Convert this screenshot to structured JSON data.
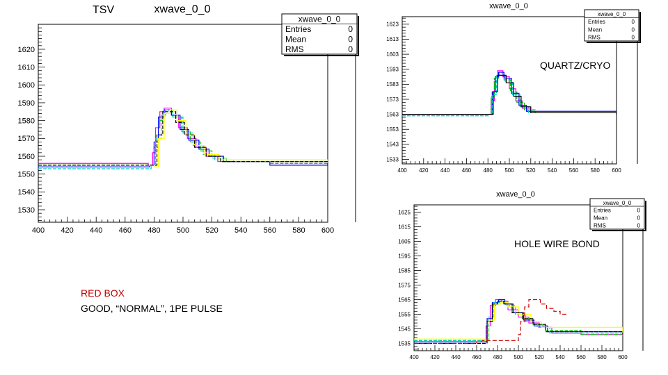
{
  "labels": {
    "tsv": "TSV",
    "quartz": "QUARTZ/CRYO",
    "hole": "HOLE WIRE BOND",
    "red_box_title": "RED BOX",
    "red_box_desc": "GOOD, “NORMAL”, 1PE PULSE"
  },
  "colors": {
    "red_box_title": "#c00000",
    "series": [
      "#ff00ff",
      "#00c000",
      "#0000ff",
      "#00cccc",
      "#ffff00",
      "#000000",
      "#cc0000"
    ]
  },
  "chart_data": [
    {
      "id": "tsv",
      "type": "line",
      "title": "xwave_0_0",
      "xlabel": "",
      "ylabel": "",
      "xlim": [
        400,
        600
      ],
      "ylim": [
        1523,
        1634
      ],
      "xticks": [
        400,
        420,
        440,
        460,
        480,
        500,
        520,
        540,
        560,
        580,
        600
      ],
      "yticks": [
        1530,
        1540,
        1550,
        1560,
        1570,
        1580,
        1590,
        1600,
        1610,
        1620
      ],
      "grid": false,
      "legend": "none",
      "stats": {
        "title": "xwave_0_0",
        "rows": [
          {
            "label": "Entries",
            "value": "0"
          },
          {
            "label": "Mean",
            "value": "0"
          },
          {
            "label": "RMS",
            "value": "0"
          }
        ]
      },
      "pulse": {
        "baseline": 1555,
        "peak": 1587,
        "start": 478,
        "peak_x": 487,
        "tau": 18
      },
      "series": [
        {
          "color": "#ff00ff",
          "values": [
            [
              400,
              1556
            ],
            [
              476,
              1555
            ],
            [
              479,
              1562
            ],
            [
              481,
              1576
            ],
            [
              484,
              1585
            ],
            [
              487,
              1587
            ],
            [
              492,
              1583
            ],
            [
              497,
              1576
            ],
            [
              503,
              1570
            ],
            [
              509,
              1565
            ],
            [
              516,
              1560
            ],
            [
              524,
              1557
            ],
            [
              540,
              1557
            ],
            [
              600,
              1556
            ]
          ]
        },
        {
          "color": "#00c000",
          "values": [
            [
              400,
              1555
            ],
            [
              478,
              1555
            ],
            [
              480,
              1565
            ],
            [
              483,
              1580
            ],
            [
              487,
              1586
            ],
            [
              493,
              1582
            ],
            [
              499,
              1574
            ],
            [
              505,
              1568
            ],
            [
              512,
              1563
            ],
            [
              520,
              1559
            ],
            [
              530,
              1557
            ],
            [
              560,
              1556
            ],
            [
              600,
              1555
            ]
          ]
        },
        {
          "color": "#0000ff",
          "values": [
            [
              400,
              1554
            ],
            [
              477,
              1555
            ],
            [
              480,
              1568
            ],
            [
              483,
              1582
            ],
            [
              487,
              1586
            ],
            [
              492,
              1583
            ],
            [
              498,
              1575
            ],
            [
              504,
              1569
            ],
            [
              511,
              1564
            ],
            [
              518,
              1560
            ],
            [
              528,
              1557
            ],
            [
              560,
              1555
            ],
            [
              600,
              1555
            ]
          ]
        },
        {
          "color": "#00cccc",
          "values": [
            [
              400,
              1553
            ],
            [
              478,
              1555
            ],
            [
              481,
              1570
            ],
            [
              485,
              1583
            ],
            [
              488,
              1586
            ],
            [
              493,
              1582
            ],
            [
              500,
              1573
            ],
            [
              507,
              1566
            ],
            [
              514,
              1561
            ],
            [
              522,
              1558
            ],
            [
              535,
              1557
            ],
            [
              600,
              1555
            ]
          ]
        },
        {
          "color": "#ffff00",
          "values": [
            [
              400,
              1555
            ],
            [
              480,
              1554
            ],
            [
              483,
              1570
            ],
            [
              487,
              1584
            ],
            [
              491,
              1586
            ],
            [
              496,
              1580
            ],
            [
              502,
              1572
            ],
            [
              508,
              1566
            ],
            [
              515,
              1561
            ],
            [
              525,
              1558
            ],
            [
              600,
              1556
            ]
          ]
        },
        {
          "color": "#000000",
          "values": [
            [
              400,
              1555
            ],
            [
              479,
              1555
            ],
            [
              482,
              1572
            ],
            [
              486,
              1585
            ],
            [
              490,
              1585
            ],
            [
              495,
              1579
            ],
            [
              501,
              1572
            ],
            [
              508,
              1565
            ],
            [
              516,
              1560
            ],
            [
              526,
              1557
            ],
            [
              600,
              1555
            ]
          ]
        }
      ]
    },
    {
      "id": "quartz",
      "type": "line",
      "title": "xwave_0_0",
      "xlabel": "",
      "ylabel": "",
      "xlim": [
        400,
        600
      ],
      "ylim": [
        1530,
        1628
      ],
      "xticks": [
        400,
        420,
        440,
        460,
        480,
        500,
        520,
        540,
        560,
        580,
        600
      ],
      "yticks": [
        1533,
        1543,
        1553,
        1563,
        1573,
        1583,
        1593,
        1603,
        1613,
        1623
      ],
      "grid": false,
      "legend": "none",
      "stats": {
        "title": "xwave_0_0",
        "rows": [
          {
            "label": "Entries",
            "value": "0"
          },
          {
            "label": "Mean",
            "value": "0"
          },
          {
            "label": "RMS",
            "value": "0"
          }
        ]
      },
      "series": [
        {
          "color": "#ff00ff",
          "values": [
            [
              400,
              1563
            ],
            [
              480,
              1563
            ],
            [
              483,
              1572
            ],
            [
              486,
              1585
            ],
            [
              489,
              1592
            ],
            [
              494,
              1588
            ],
            [
              500,
              1580
            ],
            [
              506,
              1572
            ],
            [
              512,
              1567
            ],
            [
              520,
              1564
            ],
            [
              600,
              1563
            ]
          ]
        },
        {
          "color": "#00c000",
          "values": [
            [
              400,
              1563
            ],
            [
              480,
              1563
            ],
            [
              483,
              1575
            ],
            [
              486,
              1587
            ],
            [
              490,
              1591
            ],
            [
              495,
              1586
            ],
            [
              501,
              1578
            ],
            [
              507,
              1571
            ],
            [
              514,
              1566
            ],
            [
              524,
              1564
            ],
            [
              600,
              1563
            ]
          ]
        },
        {
          "color": "#0000ff",
          "values": [
            [
              400,
              1563
            ],
            [
              481,
              1563
            ],
            [
              484,
              1578
            ],
            [
              487,
              1588
            ],
            [
              490,
              1591
            ],
            [
              495,
              1587
            ],
            [
              502,
              1577
            ],
            [
              509,
              1569
            ],
            [
              516,
              1565
            ],
            [
              600,
              1563
            ]
          ]
        },
        {
          "color": "#00cccc",
          "values": [
            [
              400,
              1562
            ],
            [
              481,
              1563
            ],
            [
              484,
              1576
            ],
            [
              488,
              1589
            ],
            [
              491,
              1590
            ],
            [
              496,
              1585
            ],
            [
              503,
              1576
            ],
            [
              510,
              1568
            ],
            [
              518,
              1564
            ],
            [
              600,
              1563
            ]
          ]
        },
        {
          "color": "#000000",
          "values": [
            [
              400,
              1563
            ],
            [
              482,
              1563
            ],
            [
              485,
              1578
            ],
            [
              489,
              1589
            ],
            [
              492,
              1589
            ],
            [
              497,
              1584
            ],
            [
              504,
              1575
            ],
            [
              511,
              1568
            ],
            [
              520,
              1564
            ],
            [
              600,
              1563
            ]
          ]
        }
      ]
    },
    {
      "id": "hole",
      "type": "line",
      "title": "xwave_0_0",
      "xlabel": "",
      "ylabel": "",
      "xlim": [
        400,
        600
      ],
      "ylim": [
        1530,
        1630
      ],
      "xticks": [
        400,
        420,
        440,
        460,
        480,
        500,
        520,
        540,
        560,
        580,
        600
      ],
      "yticks": [
        1535,
        1545,
        1555,
        1565,
        1575,
        1585,
        1595,
        1605,
        1615,
        1625
      ],
      "grid": false,
      "legend": "none",
      "stats": {
        "title": "xwave_0_0",
        "rows": [
          {
            "label": "Entries",
            "value": "0"
          },
          {
            "label": "Mean",
            "value": "0"
          },
          {
            "label": "RMS",
            "value": "0"
          }
        ]
      },
      "series": [
        {
          "color": "#ff00ff",
          "values": [
            [
              400,
              1536
            ],
            [
              465,
              1536
            ],
            [
              469,
              1547
            ],
            [
              473,
              1561
            ],
            [
              478,
              1565
            ],
            [
              484,
              1564
            ],
            [
              490,
              1558
            ],
            [
              500,
              1553
            ],
            [
              510,
              1549
            ],
            [
              520,
              1546
            ],
            [
              532,
              1542
            ],
            [
              560,
              1541
            ],
            [
              600,
              1540
            ]
          ]
        },
        {
          "color": "#00c000",
          "values": [
            [
              400,
              1537
            ],
            [
              466,
              1537
            ],
            [
              470,
              1550
            ],
            [
              475,
              1562
            ],
            [
              480,
              1564
            ],
            [
              486,
              1562
            ],
            [
              494,
              1556
            ],
            [
              504,
              1552
            ],
            [
              514,
              1548
            ],
            [
              526,
              1544
            ],
            [
              560,
              1541
            ],
            [
              600,
              1540
            ]
          ]
        },
        {
          "color": "#0000ff",
          "values": [
            [
              400,
              1536
            ],
            [
              466,
              1536
            ],
            [
              470,
              1552
            ],
            [
              475,
              1563
            ],
            [
              481,
              1565
            ],
            [
              487,
              1562
            ],
            [
              495,
              1556
            ],
            [
              505,
              1551
            ],
            [
              515,
              1547
            ],
            [
              528,
              1543
            ],
            [
              600,
              1541
            ]
          ]
        },
        {
          "color": "#00cccc",
          "values": [
            [
              400,
              1537
            ],
            [
              467,
              1537
            ],
            [
              471,
              1553
            ],
            [
              476,
              1563
            ],
            [
              482,
              1564
            ],
            [
              488,
              1561
            ],
            [
              497,
              1555
            ],
            [
              507,
              1550
            ],
            [
              518,
              1546
            ],
            [
              530,
              1542
            ],
            [
              600,
              1541
            ]
          ]
        },
        {
          "color": "#ffff00",
          "values": [
            [
              400,
              1538
            ],
            [
              468,
              1537
            ],
            [
              472,
              1551
            ],
            [
              477,
              1562
            ],
            [
              483,
              1563
            ],
            [
              490,
              1560
            ],
            [
              500,
              1555
            ],
            [
              512,
              1550
            ],
            [
              522,
              1546
            ],
            [
              600,
              1541
            ]
          ]
        },
        {
          "color": "#000000",
          "values": [
            [
              400,
              1535
            ],
            [
              466,
              1535
            ],
            [
              470,
              1550
            ],
            [
              475,
              1562
            ],
            [
              480,
              1564
            ],
            [
              486,
              1562
            ],
            [
              494,
              1556
            ],
            [
              504,
              1552
            ],
            [
              514,
              1548
            ],
            [
              526,
              1543
            ],
            [
              600,
              1541
            ]
          ]
        },
        {
          "color": "#cc0000",
          "values": [
            [
              400,
              1535
            ],
            [
              460,
              1536
            ],
            [
              465,
              1537
            ],
            [
              500,
              1541
            ],
            [
              502,
              1550
            ],
            [
              506,
              1560
            ],
            [
              510,
              1565
            ],
            [
              516,
              1565
            ],
            [
              521,
              1562
            ],
            [
              527,
              1559
            ],
            [
              534,
              1557
            ],
            [
              540,
              1555
            ],
            [
              546,
              1554
            ]
          ]
        }
      ]
    }
  ]
}
